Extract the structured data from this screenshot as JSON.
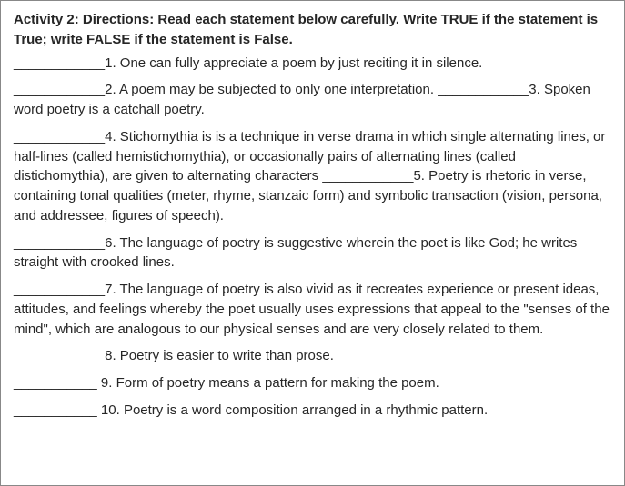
{
  "directions": "Activity 2: Directions: Read each statement below carefully. Write TRUE if the statement is True; write FALSE if the statement is False.",
  "blank": "____________",
  "blank_short": "___________",
  "items": {
    "q1": "1. One can fully appreciate a poem by just reciting it in silence.",
    "q2": "2. A poem may be subjected to only one interpretation. ",
    "q3": "3. Spoken word poetry is a catchall poetry.",
    "q4": "4. Stichomythia is is a technique in verse drama in which single alternating lines, or half-lines (called hemistichomythia), or occasionally pairs of alternating lines (called distichomythia), are given to alternating characters ",
    "q5": "5. Poetry is rhetoric in verse, containing tonal qualities (meter, rhyme, stanzaic form) and  symbolic transaction (vision, persona, and addressee, figures of speech).",
    "q6": "6. The language of poetry is suggestive wherein the poet is like God; he writes straight with crooked lines.",
    "q7": "7. The language of poetry is also vivid as it recreates experience or present ideas, attitudes, and feelings whereby the poet usually uses expressions that appeal to the \"senses of the mind\", which are analogous to our physical senses and are very closely related to them.",
    "q8": "8.  Poetry is easier to write than prose.",
    "q9": " 9. Form of poetry means a pattern for making the poem.",
    "q10": " 10. Poetry is a word composition arranged in a rhythmic pattern."
  }
}
